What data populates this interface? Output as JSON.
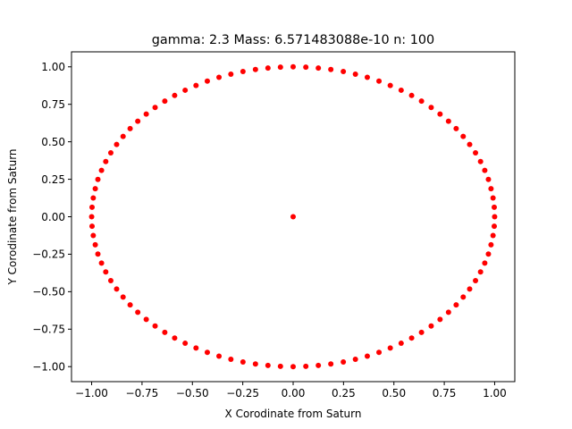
{
  "chart_data": {
    "type": "scatter",
    "title": "gamma: 2.3 Mass: 6.571483088e-10 n: 100",
    "xlabel": "X Corodinate from Saturn",
    "ylabel": "Y Corodinate from Saturn",
    "xlim": [
      -1.1,
      1.1
    ],
    "ylim": [
      -1.1,
      1.1
    ],
    "x_ticks": [
      -1.0,
      -0.75,
      -0.5,
      -0.25,
      0.0,
      0.25,
      0.5,
      0.75,
      1.0
    ],
    "y_ticks": [
      -1.0,
      -0.75,
      -0.5,
      -0.25,
      0.0,
      0.25,
      0.5,
      0.75,
      1.0
    ],
    "x_tick_labels": [
      "−1.00",
      "−0.75",
      "−0.50",
      "−0.25",
      "0.00",
      "0.25",
      "0.50",
      "0.75",
      "1.00"
    ],
    "y_tick_labels": [
      "−1.00",
      "−0.75",
      "−0.50",
      "−0.25",
      "0.00",
      "0.25",
      "0.50",
      "0.75",
      "1.00"
    ],
    "grid": false,
    "marker_color": "#ff0000",
    "series": [
      {
        "description": "ring of particles on the unit circle",
        "x": [
          1,
          0.998,
          0.992,
          0.982,
          0.969,
          0.951,
          0.93,
          0.905,
          0.876,
          0.844,
          0.809,
          0.771,
          0.729,
          0.685,
          0.637,
          0.588,
          0.536,
          0.482,
          0.426,
          0.368,
          0.309,
          0.249,
          0.187,
          0.125,
          0.063,
          0,
          -0.063,
          -0.125,
          -0.187,
          -0.249,
          -0.309,
          -0.368,
          -0.426,
          -0.482,
          -0.536,
          -0.588,
          -0.637,
          -0.685,
          -0.729,
          -0.771,
          -0.809,
          -0.844,
          -0.876,
          -0.905,
          -0.93,
          -0.951,
          -0.969,
          -0.982,
          -0.992,
          -0.998,
          -1,
          -0.998,
          -0.992,
          -0.982,
          -0.969,
          -0.951,
          -0.93,
          -0.905,
          -0.876,
          -0.844,
          -0.809,
          -0.771,
          -0.729,
          -0.685,
          -0.637,
          -0.588,
          -0.536,
          -0.482,
          -0.426,
          -0.368,
          -0.309,
          -0.249,
          -0.187,
          -0.125,
          -0.063,
          0,
          0.063,
          0.125,
          0.187,
          0.249,
          0.309,
          0.368,
          0.426,
          0.482,
          0.536,
          0.588,
          0.637,
          0.685,
          0.729,
          0.771,
          0.809,
          0.844,
          0.876,
          0.905,
          0.93,
          0.951,
          0.969,
          0.982,
          0.992,
          0.998
        ],
        "y": [
          0,
          0.063,
          0.125,
          0.187,
          0.249,
          0.309,
          0.368,
          0.426,
          0.482,
          0.536,
          0.588,
          0.637,
          0.685,
          0.729,
          0.771,
          0.809,
          0.844,
          0.876,
          0.905,
          0.93,
          0.951,
          0.969,
          0.982,
          0.992,
          0.998,
          1,
          0.998,
          0.992,
          0.982,
          0.969,
          0.951,
          0.93,
          0.905,
          0.876,
          0.844,
          0.809,
          0.771,
          0.729,
          0.685,
          0.637,
          0.588,
          0.536,
          0.482,
          0.426,
          0.368,
          0.309,
          0.249,
          0.187,
          0.125,
          0.063,
          0,
          -0.063,
          -0.125,
          -0.187,
          -0.249,
          -0.309,
          -0.368,
          -0.426,
          -0.482,
          -0.536,
          -0.588,
          -0.637,
          -0.685,
          -0.729,
          -0.771,
          -0.809,
          -0.844,
          -0.876,
          -0.905,
          -0.93,
          -0.951,
          -0.969,
          -0.982,
          -0.992,
          -0.998,
          -1,
          -0.998,
          -0.992,
          -0.982,
          -0.969,
          -0.951,
          -0.93,
          -0.905,
          -0.876,
          -0.844,
          -0.809,
          -0.771,
          -0.729,
          -0.685,
          -0.637,
          -0.588,
          -0.536,
          -0.482,
          -0.426,
          -0.368,
          -0.309,
          -0.249,
          -0.187,
          -0.125,
          -0.063
        ]
      },
      {
        "description": "central body (Saturn)",
        "x": [
          0
        ],
        "y": [
          0
        ]
      }
    ]
  }
}
